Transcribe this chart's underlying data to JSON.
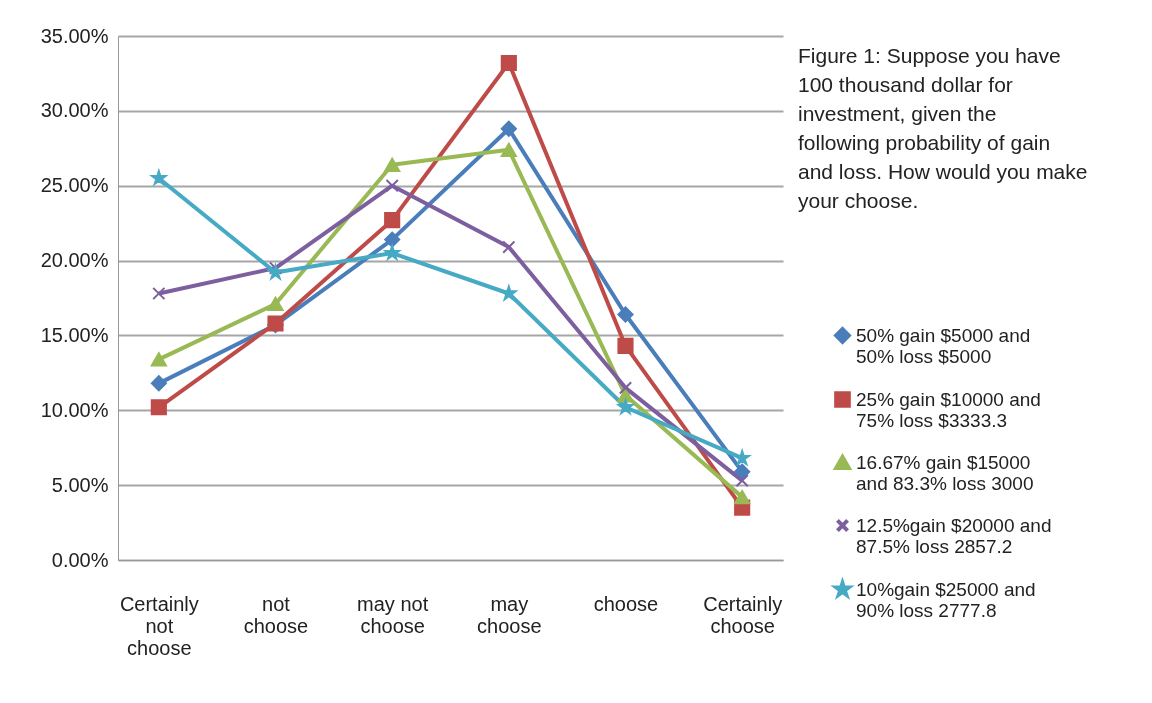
{
  "chart_data": {
    "type": "line",
    "title": "Figure 1: Suppose you have 100 thousand dollar for investment, given the following probability of gain and loss. How would you make your choose.",
    "categories": [
      "Certainly not choose",
      "not choose",
      "may not choose",
      "may choose",
      "choose",
      "Certainly choose"
    ],
    "series": [
      {
        "name": "50% gain $5000 and 50% loss $5000",
        "color": "#4a7ebb",
        "marker": "diamond",
        "values": [
          11.8,
          15.7,
          21.4,
          28.8,
          16.4,
          5.9
        ]
      },
      {
        "name": "25% gain $10000 and 75% loss $3333.3",
        "color": "#be4b48",
        "marker": "square",
        "values": [
          10.2,
          15.8,
          22.7,
          33.2,
          14.3,
          3.5
        ]
      },
      {
        "name": "16.67% gain $15000 and 83.3% loss 3000",
        "color": "#98b954",
        "marker": "triangle",
        "values": [
          13.4,
          17.1,
          26.4,
          27.4,
          11.0,
          4.2
        ]
      },
      {
        "name": "12.5%gain $20000 and 87.5% loss 2857.2",
        "color": "#7d5fa0",
        "marker": "cross",
        "values": [
          17.8,
          19.5,
          25.0,
          20.9,
          11.5,
          5.3
        ]
      },
      {
        "name": "10%gain $25000 and 90% loss 2777.8",
        "color": "#46aac5",
        "marker": "star",
        "values": [
          25.5,
          19.2,
          20.5,
          17.8,
          10.2,
          6.8
        ]
      }
    ],
    "ylim": [
      0,
      35
    ],
    "yticks": [
      {
        "value": 0,
        "label": "0.00%"
      },
      {
        "value": 5,
        "label": "5.00%"
      },
      {
        "value": 10,
        "label": "10.00%"
      },
      {
        "value": 15,
        "label": "15.00%"
      },
      {
        "value": 20,
        "label": "20.00%"
      },
      {
        "value": 25,
        "label": "25.00%"
      },
      {
        "value": 30,
        "label": "30.00%"
      },
      {
        "value": 35,
        "label": "35.00%"
      }
    ],
    "grid": "y",
    "legend": "right",
    "line_style": "solid"
  }
}
